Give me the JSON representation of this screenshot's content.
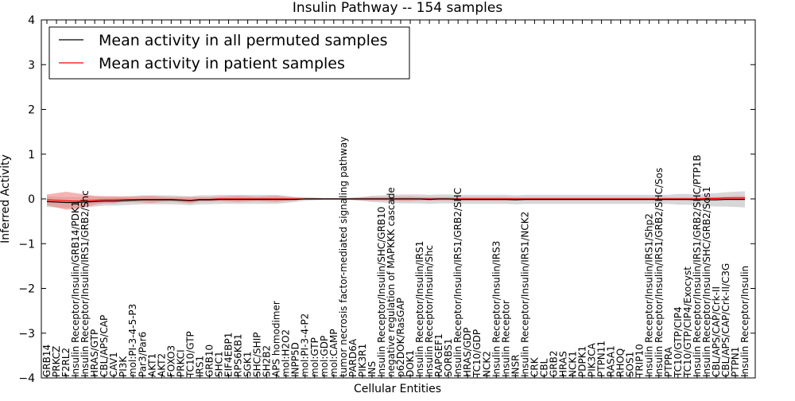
{
  "chart_data": {
    "type": "line",
    "title": "Insulin Pathway -- 154 samples",
    "xlabel": "Cellular Entities",
    "ylabel": "Inferred Activity",
    "ylim": [
      -4,
      4
    ],
    "yticks": [
      -4,
      -3,
      -2,
      -1,
      0,
      1,
      2,
      3,
      4
    ],
    "ytick_labels": [
      "−4",
      "−3",
      "−2",
      "−1",
      "0",
      "1",
      "2",
      "3",
      "4"
    ],
    "grid": false,
    "legend_position": "top-left",
    "categories": [
      "GRB14",
      "PRKCZ",
      "F2RL2",
      "Insulin Receptor/Insulin/GRB14/PDK1",
      "Insulin Receptor/Insulin/IRS1/GRB2/Shc",
      "HRAS/GTP",
      "CBL/APS/CAP",
      "CAV1",
      "PI3K",
      "mol:PI-3-4-5-P3",
      "Par3/Par6",
      "AKT1",
      "AKT2",
      "FOXO3",
      "PRKCI",
      "TC10/GTP",
      "IRS1",
      "GRB10",
      "SHC1",
      "EIF4EBP1",
      "RPS6KB1",
      "SGK1",
      "SHC/SHIP",
      "SH2B2",
      "APS homodimer",
      "mol:H2O2",
      "INPP5D",
      "mol:PI-3-4-P2",
      "mol:GTP",
      "mol:GDP",
      "mol:CAMP",
      "tumor necrosis factor-mediated signaling pathway",
      "PARD6A",
      "PIK3R1",
      "INS",
      "Insulin Receptor/Insulin/SHC/GRB10",
      "negative regulation of MAPKKK cascade",
      "p62DOK/RasGAP",
      "DOK1",
      "Insulin Receptor/Insulin/IRS1",
      "Insulin Receptor/Insulin/Shc",
      "RAPGEF1",
      "SORBS1",
      "Insulin Receptor/Insulin/IRS1/GRB2/SHC",
      "HRAS/GDP",
      "TC10/GDP",
      "NCK2",
      "Insulin Receptor/Insulin/IRS3",
      "Insulin Receptor",
      "INSR",
      "Insulin Receptor/Insulin/IRS1/NCK2",
      "CRK",
      "CBL",
      "GRB2",
      "HRAS",
      "NCK1",
      "PDPK1",
      "PIK3CA",
      "PTPN11",
      "RASA1",
      "RHOQ",
      "SOS1",
      "TRIP10",
      "Insulin Receptor/Insulin/IRS1/Shp2",
      "Insulin Receptor/Insulin/IRS1/GRB2/SHC/Sos",
      "PTPRA",
      "TC10/GTP/CIP4",
      "TC10/GTP/CIP4/Exocyst",
      "Insulin Receptor/Insulin/IRS1/GRB2/SHC/PTP1B",
      "Insulin Receptor/Insulin/SHC/GRB2/Sos1",
      "CBL/APS/CAP/Crk-II",
      "CBL/APS/CAP/Crk-II/C3G",
      "PTPN1",
      "Insulin Receptor/Insulin"
    ],
    "series": [
      {
        "name": "Mean activity in all permuted samples",
        "color": "#000000",
        "band_color": "#b0b0b0",
        "values": [
          -0.06,
          -0.07,
          -0.08,
          -0.08,
          -0.07,
          -0.06,
          -0.05,
          -0.05,
          -0.04,
          -0.03,
          -0.02,
          -0.02,
          -0.02,
          -0.02,
          -0.03,
          -0.04,
          -0.02,
          -0.02,
          -0.01,
          -0.01,
          -0.01,
          -0.01,
          -0.01,
          -0.01,
          -0.01,
          -0.01,
          -0.01,
          0.0,
          0.0,
          0.0,
          0.0,
          0.0,
          0.0,
          0.0,
          0.0,
          0.0,
          0.0,
          0.0,
          0.0,
          0.0,
          -0.01,
          0.0,
          0.0,
          -0.01,
          -0.01,
          -0.01,
          -0.01,
          -0.01,
          -0.01,
          -0.02,
          -0.01,
          -0.01,
          -0.01,
          -0.01,
          -0.01,
          -0.01,
          -0.01,
          -0.01,
          -0.01,
          -0.01,
          -0.01,
          -0.01,
          -0.01,
          -0.01,
          -0.01,
          -0.01,
          -0.01,
          -0.01,
          -0.02,
          -0.02,
          -0.02,
          -0.01,
          -0.01,
          -0.01
        ],
        "band": [
          0.12,
          0.12,
          0.12,
          0.12,
          0.12,
          0.11,
          0.1,
          0.1,
          0.1,
          0.1,
          0.1,
          0.1,
          0.1,
          0.1,
          0.1,
          0.1,
          0.1,
          0.1,
          0.1,
          0.1,
          0.1,
          0.1,
          0.1,
          0.1,
          0.1,
          0.08,
          0.06,
          0.04,
          0.03,
          0.02,
          0.02,
          0.02,
          0.03,
          0.05,
          0.07,
          0.08,
          0.09,
          0.1,
          0.1,
          0.1,
          0.1,
          0.1,
          0.1,
          0.1,
          0.1,
          0.1,
          0.1,
          0.1,
          0.1,
          0.1,
          0.1,
          0.1,
          0.1,
          0.1,
          0.1,
          0.1,
          0.1,
          0.1,
          0.1,
          0.1,
          0.1,
          0.1,
          0.1,
          0.1,
          0.1,
          0.1,
          0.12,
          0.12,
          0.12,
          0.14,
          0.15,
          0.16,
          0.17,
          0.18
        ]
      },
      {
        "name": "Mean activity in patient samples",
        "color": "#ff0000",
        "band_color": "#f08080",
        "values": [
          -0.02,
          -0.03,
          -0.04,
          -0.05,
          -0.04,
          -0.03,
          -0.02,
          -0.02,
          -0.01,
          -0.01,
          -0.01,
          -0.01,
          -0.01,
          -0.01,
          -0.02,
          -0.03,
          -0.01,
          -0.01,
          0.0,
          0.0,
          0.0,
          0.0,
          0.0,
          0.0,
          0.0,
          0.0,
          0.0,
          0.0,
          0.0,
          0.0,
          0.0,
          0.0,
          0.0,
          0.0,
          0.0,
          0.0,
          0.0,
          0.0,
          0.0,
          0.0,
          0.0,
          0.0,
          0.0,
          0.0,
          0.0,
          0.0,
          0.0,
          0.0,
          0.0,
          0.0,
          0.0,
          0.0,
          0.0,
          0.0,
          0.0,
          0.0,
          0.0,
          0.0,
          0.0,
          0.0,
          0.0,
          0.0,
          0.0,
          0.0,
          0.0,
          0.0,
          0.0,
          0.0,
          0.0,
          0.01,
          0.01,
          0.02,
          0.02,
          0.02
        ],
        "band": [
          0.12,
          0.16,
          0.2,
          0.18,
          0.14,
          0.1,
          0.08,
          0.08,
          0.06,
          0.06,
          0.07,
          0.08,
          0.06,
          0.05,
          0.06,
          0.07,
          0.05,
          0.05,
          0.05,
          0.06,
          0.07,
          0.06,
          0.05,
          0.06,
          0.07,
          0.05,
          0.03,
          0.02,
          0.02,
          0.01,
          0.01,
          0.01,
          0.02,
          0.03,
          0.04,
          0.04,
          0.04,
          0.05,
          0.05,
          0.04,
          0.04,
          0.04,
          0.04,
          0.04,
          0.04,
          0.04,
          0.04,
          0.04,
          0.04,
          0.03,
          0.03,
          0.03,
          0.03,
          0.03,
          0.03,
          0.03,
          0.03,
          0.03,
          0.03,
          0.03,
          0.03,
          0.03,
          0.03,
          0.03,
          0.03,
          0.03,
          0.03,
          0.03,
          0.03,
          0.03,
          0.03,
          0.03,
          0.04,
          0.04
        ]
      }
    ]
  }
}
